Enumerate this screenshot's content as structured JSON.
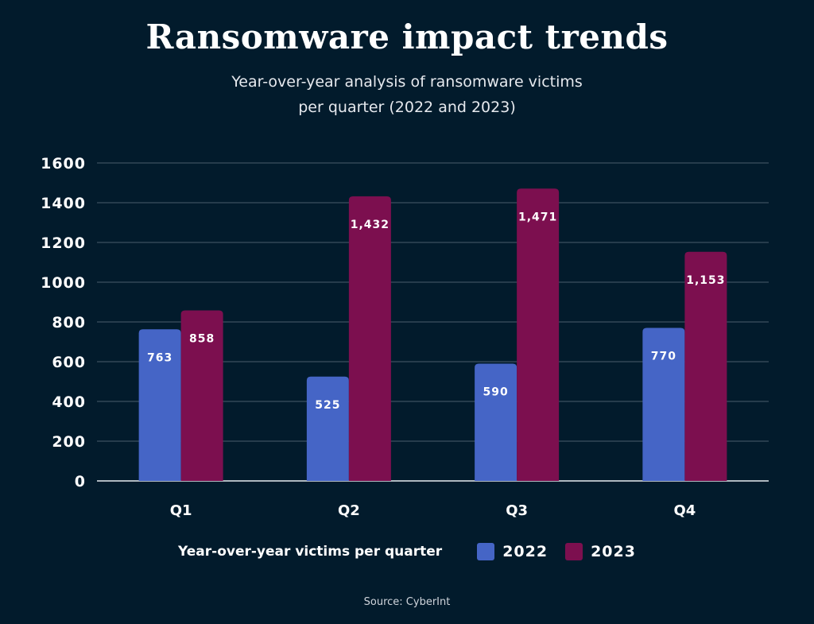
{
  "chart_data": {
    "type": "bar",
    "title": "Ransomware impact trends",
    "subtitle": [
      "Year-over-year analysis of ransomware victims",
      "per quarter (2022 and 2023)"
    ],
    "categories": [
      "Q1",
      "Q2",
      "Q3",
      "Q4"
    ],
    "series": [
      {
        "name": "2022",
        "values": [
          763,
          525,
          590,
          770
        ],
        "labels": [
          "763",
          "525",
          "590",
          "770"
        ],
        "color": "#4565c6"
      },
      {
        "name": "2023",
        "values": [
          858,
          1432,
          1471,
          1153
        ],
        "labels": [
          "858",
          "1,432",
          "1,471",
          "1,153"
        ],
        "color": "#7c0f4f"
      }
    ],
    "ylim": [
      0,
      1600
    ],
    "yticks": [
      "0",
      "200",
      "400",
      "600",
      "800",
      "1000",
      "1200",
      "1400",
      "1600"
    ],
    "legend_title": "Year-over-year victims per quarter",
    "legend_position": "bottom",
    "grid": true,
    "source": "Source: CyberInt"
  }
}
